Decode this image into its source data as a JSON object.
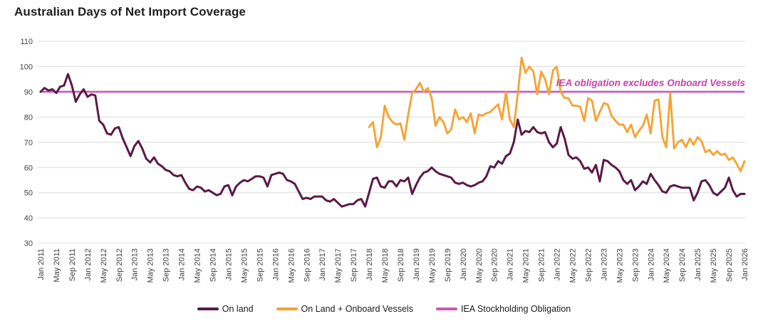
{
  "chart_data": {
    "type": "line",
    "title": "Australian Days of Net Import Coverage",
    "xlabel": "",
    "ylabel": "",
    "ylim": [
      30,
      110
    ],
    "y_ticks": [
      110,
      100,
      90,
      80,
      70,
      60,
      50,
      40,
      30
    ],
    "grid": "horizontal",
    "legend_position": "bottom",
    "x_range": [
      "Jan 2011",
      "Jan 2026"
    ],
    "x_tick_labels": [
      "Jan 2011",
      "May 2011",
      "Sep 2011",
      "Jan 2012",
      "May 2012",
      "Sep 2012",
      "Jan 2013",
      "May 2013",
      "Sep 2013",
      "Jan 2014",
      "May 2014",
      "Sep 2014",
      "Jan 2015",
      "May 2015",
      "Sep 2015",
      "Jan 2016",
      "May 2016",
      "Sep 2016",
      "Jan 2017",
      "May 2017",
      "Sep 2017",
      "Jan 2018",
      "May 2018",
      "Sep 2018",
      "Jan 2019",
      "May 2019",
      "Sep 2019",
      "Jan 2020",
      "May 2020",
      "Sep 2020",
      "Jan 2021",
      "May 2021",
      "Sep 2021",
      "Jan 2022",
      "May 2022",
      "Sep 2022",
      "Jan 2023",
      "May 2023",
      "Sep 2023",
      "Jan 2024",
      "May 2024",
      "Sep 2024",
      "Jan 2025",
      "May 2025",
      "Sep 2025",
      "Jan 2026"
    ],
    "series": [
      {
        "name": "On land",
        "color": "#5a1a46",
        "start": "Jan 2011",
        "frequency": "monthly",
        "monthly_values": [
          90,
          91.5,
          90.5,
          91,
          89.5,
          92,
          92.5,
          97,
          92.5,
          86,
          89,
          91,
          88,
          89,
          88.5,
          78.5,
          77,
          73.5,
          73,
          75.5,
          76,
          71.5,
          68,
          64.5,
          68.5,
          70.5,
          67.5,
          63.5,
          62,
          64,
          61.5,
          60.5,
          59,
          58.5,
          57,
          56.5,
          57,
          54,
          51.5,
          51,
          52.5,
          52,
          50.5,
          51,
          50,
          49,
          49.5,
          52.5,
          53,
          49,
          52.5,
          54,
          55,
          54.5,
          55.5,
          56.5,
          56.5,
          56,
          52.5,
          57,
          57.5,
          58,
          57.5,
          55,
          54.5,
          53.5,
          50.5,
          47.5,
          48,
          47.5,
          48.5,
          48.5,
          48.5,
          47,
          46.5,
          47.5,
          46,
          44.5,
          45,
          45.5,
          45.5,
          47,
          47.5,
          44.5,
          50,
          55.5,
          56,
          52.5,
          52,
          54.5,
          54.5,
          52.5,
          55,
          54.5,
          56,
          49.5,
          53,
          56,
          58,
          58.5,
          60,
          58.5,
          57.5,
          57,
          56.5,
          56,
          54,
          53.5,
          54,
          53,
          52.5,
          53,
          54,
          54.5,
          56.5,
          60.5,
          60,
          62.5,
          61.5,
          64.5,
          65.5,
          70,
          79,
          73,
          74.5,
          74,
          76,
          74,
          73.5,
          74,
          70,
          68,
          69.5,
          76,
          71.5,
          65,
          63.5,
          64,
          62.5,
          59.5,
          60,
          58,
          61,
          54.5,
          63,
          62.5,
          61,
          60,
          58.5,
          55,
          53.5,
          55,
          51,
          52.5,
          54.5,
          53.5,
          57.5,
          55,
          53,
          50.5,
          50,
          52.5,
          53,
          52.5,
          52,
          52,
          52,
          47,
          50,
          54.5,
          55,
          53,
          50,
          49,
          50.5,
          52,
          56,
          51,
          48.5,
          49.5,
          49.5
        ]
      },
      {
        "name": "On Land + Onboard Vessels",
        "color": "#f6a231",
        "start": "Jan 2018",
        "frequency": "monthly",
        "monthly_values": [
          76,
          78,
          68,
          72,
          84.5,
          80,
          78,
          77,
          77.5,
          71,
          81,
          89.5,
          91,
          93.5,
          90,
          91.5,
          87.5,
          76.5,
          80,
          78,
          73.5,
          75,
          83,
          79,
          80,
          78,
          81.5,
          73.5,
          81,
          80.5,
          81.5,
          82,
          83.5,
          85,
          79,
          90,
          79,
          76,
          89,
          103.5,
          97.5,
          100,
          98,
          89,
          98,
          95,
          89,
          98.5,
          100,
          90,
          87.5,
          87.5,
          84.5,
          84.5,
          84,
          78.5,
          87.5,
          86.5,
          78.5,
          82,
          85.5,
          85,
          80.5,
          78.5,
          77,
          77,
          74,
          77,
          72,
          74.5,
          76.5,
          81,
          73.5,
          86.5,
          87,
          72,
          68,
          89.5,
          67.5,
          70,
          71,
          68,
          71.5,
          69,
          72,
          70.5,
          66,
          67,
          65,
          66.5,
          65,
          65.5,
          63,
          64,
          61.5,
          58.5,
          62.5
        ]
      },
      {
        "name": "IEA Stockholding Obligation",
        "color": "#ca58b5",
        "constant_value": 90
      }
    ],
    "annotation": {
      "text": "IEA obligation excludes Onboard Vessels",
      "color": "#c544ab"
    }
  },
  "legend": {
    "items": [
      {
        "label": "On land"
      },
      {
        "label": "On Land + Onboard Vessels"
      },
      {
        "label": "IEA Stockholding Obligation"
      }
    ]
  },
  "colors": {
    "gridline": "#dcdcdc",
    "bottom_gridline": "#f3d7e6",
    "tick_text": "#404040",
    "title_text": "#1f1f1f"
  }
}
